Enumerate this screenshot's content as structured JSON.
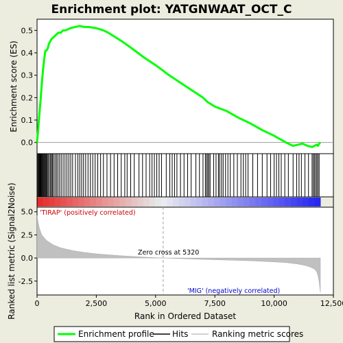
{
  "title": "Enrichment plot: YATGNWAAT_OCT_C",
  "chart_data": {
    "type": "line",
    "title": "Enrichment plot: YATGNWAAT_OCT_C",
    "xlabel": "Rank in Ordered Dataset",
    "xlim": [
      0,
      12500
    ],
    "x_ticks": [
      0,
      2500,
      5000,
      7500,
      10000,
      12500
    ],
    "x_tick_labels": [
      "0",
      "2,500",
      "5,000",
      "7,500",
      "10,000",
      "12,500"
    ],
    "es_panel": {
      "ylabel": "Enrichment score (ES)",
      "ylim": [
        -0.05,
        0.55
      ],
      "y_ticks": [
        0.0,
        0.1,
        0.2,
        0.3,
        0.4,
        0.5
      ],
      "y_tick_labels": [
        "0.0",
        "0.1",
        "0.2",
        "0.3",
        "0.4",
        "0.5"
      ],
      "series": [
        {
          "name": "Enrichment profile",
          "color": "#00ff00",
          "x": [
            0,
            50,
            100,
            150,
            200,
            250,
            300,
            350,
            400,
            450,
            500,
            600,
            700,
            800,
            900,
            1000,
            1100,
            1200,
            1400,
            1600,
            1800,
            2000,
            2200,
            2500,
            2800,
            3000,
            3300,
            3600,
            4000,
            4500,
            5000,
            5320,
            5500,
            6000,
            6500,
            7000,
            7200,
            7500,
            8000,
            8500,
            9000,
            9500,
            10000,
            10500,
            10800,
            11000,
            11200,
            11400,
            11600,
            11700,
            11800,
            11850,
            11900,
            11950
          ],
          "y": [
            0.0,
            0.06,
            0.13,
            0.19,
            0.26,
            0.32,
            0.37,
            0.41,
            0.41,
            0.42,
            0.44,
            0.46,
            0.47,
            0.48,
            0.49,
            0.49,
            0.5,
            0.5,
            0.51,
            0.515,
            0.52,
            0.515,
            0.515,
            0.51,
            0.5,
            0.49,
            0.47,
            0.45,
            0.42,
            0.38,
            0.345,
            0.32,
            0.305,
            0.27,
            0.235,
            0.2,
            0.18,
            0.16,
            0.14,
            0.11,
            0.085,
            0.055,
            0.03,
            0.0,
            -0.015,
            -0.01,
            -0.005,
            -0.015,
            -0.02,
            -0.015,
            -0.01,
            -0.015,
            -0.005,
            0.0
          ]
        }
      ]
    },
    "hits_panel": {
      "legend_name": "Hits",
      "hit_ranks": [
        10,
        40,
        70,
        100,
        130,
        160,
        190,
        220,
        250,
        280,
        310,
        340,
        370,
        400,
        430,
        470,
        520,
        570,
        610,
        650,
        700,
        760,
        820,
        880,
        950,
        1020,
        1100,
        1180,
        1260,
        1340,
        1420,
        1500,
        1620,
        1720,
        1800,
        1880,
        1960,
        2050,
        2150,
        2250,
        2350,
        2450,
        2560,
        2680,
        2800,
        2950,
        3100,
        3250,
        3400,
        3550,
        3700,
        3800,
        3950,
        4100,
        4300,
        4450,
        4600,
        4750,
        4850,
        4950,
        5050,
        5150,
        5250,
        5450,
        5600,
        5700,
        5800,
        5900,
        6050,
        6200,
        6350,
        6500,
        6700,
        6850,
        7000,
        7100,
        7150,
        7200,
        7250,
        7300,
        7450,
        7550,
        7650,
        7700,
        7780,
        7850,
        7950,
        8050,
        8150,
        8300,
        8450,
        8600,
        8700,
        8800,
        8900,
        9100,
        9300,
        9500,
        9700,
        9850,
        10000,
        10100,
        10200,
        10300,
        10450,
        10600,
        10800,
        10950,
        11050,
        11150,
        11300,
        11450,
        11600,
        11650,
        11700,
        11750,
        11800,
        11850,
        11900
      ]
    },
    "metric_panel": {
      "ylabel": "Ranked list metric (Signal2Noise)",
      "ylim": [
        -4.0,
        5.5
      ],
      "y_ticks": [
        -2.5,
        0.0,
        2.5,
        5.0
      ],
      "y_tick_labels": [
        "-2.5",
        "0.0",
        "2.5",
        "5.0"
      ],
      "x": [
        0,
        50,
        100,
        200,
        400,
        700,
        1000,
        1500,
        2000,
        2500,
        3000,
        3500,
        4000,
        4500,
        5000,
        5320,
        6000,
        7000,
        8000,
        9000,
        10000,
        10500,
        11000,
        11300,
        11500,
        11700,
        11800,
        11850,
        11900,
        11950
      ],
      "y": [
        4.6,
        3.8,
        3.2,
        2.5,
        1.9,
        1.4,
        1.1,
        0.8,
        0.6,
        0.45,
        0.35,
        0.25,
        0.18,
        0.1,
        0.04,
        0.0,
        -0.06,
        -0.15,
        -0.22,
        -0.3,
        -0.42,
        -0.5,
        -0.65,
        -0.8,
        -0.95,
        -1.2,
        -1.5,
        -1.9,
        -2.6,
        -3.7
      ],
      "zero_cross_label": "Zero cross at 5320",
      "zero_cross_rank": 5320,
      "pos_label": "'TIRAP' (positively correlated)",
      "neg_label": "'MIG' (negatively correlated)"
    },
    "legend": [
      "Enrichment profile",
      "Hits",
      "Ranking metric scores"
    ]
  },
  "colors": {
    "background": "#ececdf",
    "plot_bg": "#ffffff",
    "es_line": "#00ff00",
    "hit_line": "#000000",
    "metric_fill": "#c0c0c0",
    "pos_text": "#cc0000",
    "neg_text": "#0000cc"
  }
}
